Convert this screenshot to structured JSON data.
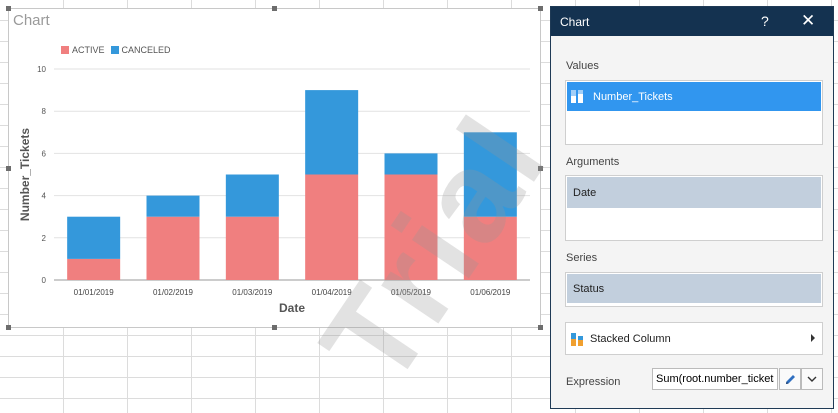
{
  "chart_panel": {
    "title": "Chart",
    "watermark": "Trial"
  },
  "chart_data": {
    "type": "bar",
    "stacked": true,
    "categories": [
      "01/01/2019",
      "01/02/2019",
      "01/03/2019",
      "01/04/2019",
      "01/05/2019",
      "01/06/2019"
    ],
    "series": [
      {
        "name": "ACTIVE",
        "color": "#f07f7f",
        "values": [
          1,
          3,
          3,
          5,
          5,
          3
        ]
      },
      {
        "name": "CANCELED",
        "color": "#3498db",
        "values": [
          2,
          1,
          2,
          4,
          1,
          4
        ]
      }
    ],
    "xlabel": "Date",
    "ylabel": "Number_Tickets",
    "ylim": [
      0,
      10
    ],
    "yticks": [
      "0",
      "2",
      "4",
      "6",
      "8",
      "10"
    ],
    "grid": true,
    "legend_position": "top-left"
  },
  "settings_panel": {
    "title": "Chart",
    "help_symbol": "?",
    "close_symbol": "✕",
    "values_label": "Values",
    "values_item": "Number_Tickets",
    "arguments_label": "Arguments",
    "arguments_item": "Date",
    "series_label": "Series",
    "series_item": "Status",
    "chart_type": "Stacked Column",
    "expression_label": "Expression",
    "expression_value": "Sum(root.number_tickets"
  },
  "icons": {
    "values_item_icon": "bar-series-icon",
    "chart_type_icon": "stacked-column-icon",
    "edit_icon": "pencil-icon",
    "dropdown_icon": "chevron-down-icon",
    "expand_icon": "chevron-right-icon"
  }
}
